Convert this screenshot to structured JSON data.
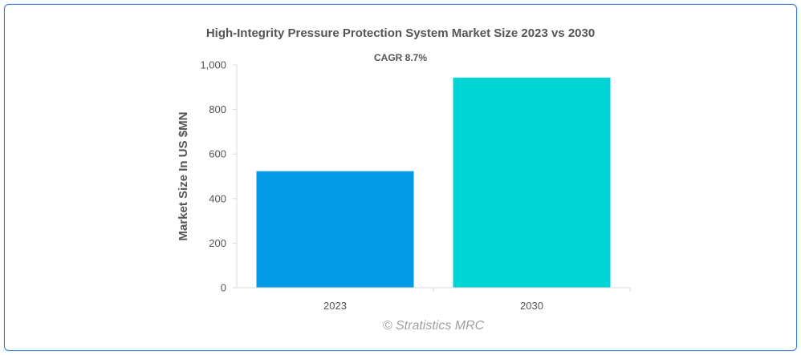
{
  "chart_data": {
    "type": "bar",
    "title": "High-Integrity Pressure Protection System Market Size 2023 vs 2030",
    "subtitle": "CAGR 8.7%",
    "xlabel": "",
    "ylabel": "Market Size In US $MN",
    "categories": [
      "2023",
      "2030"
    ],
    "values": [
      523,
      943
    ],
    "colors": [
      "#039be5",
      "#00d4d4"
    ],
    "ylim": [
      0,
      1000
    ],
    "yticks": [
      0,
      200,
      400,
      600,
      800,
      1000
    ],
    "ytick_labels": [
      "0",
      "200",
      "400",
      "600",
      "800",
      "1,000"
    ],
    "grid": false,
    "legend": "none"
  },
  "watermark": "© Stratistics MRC"
}
